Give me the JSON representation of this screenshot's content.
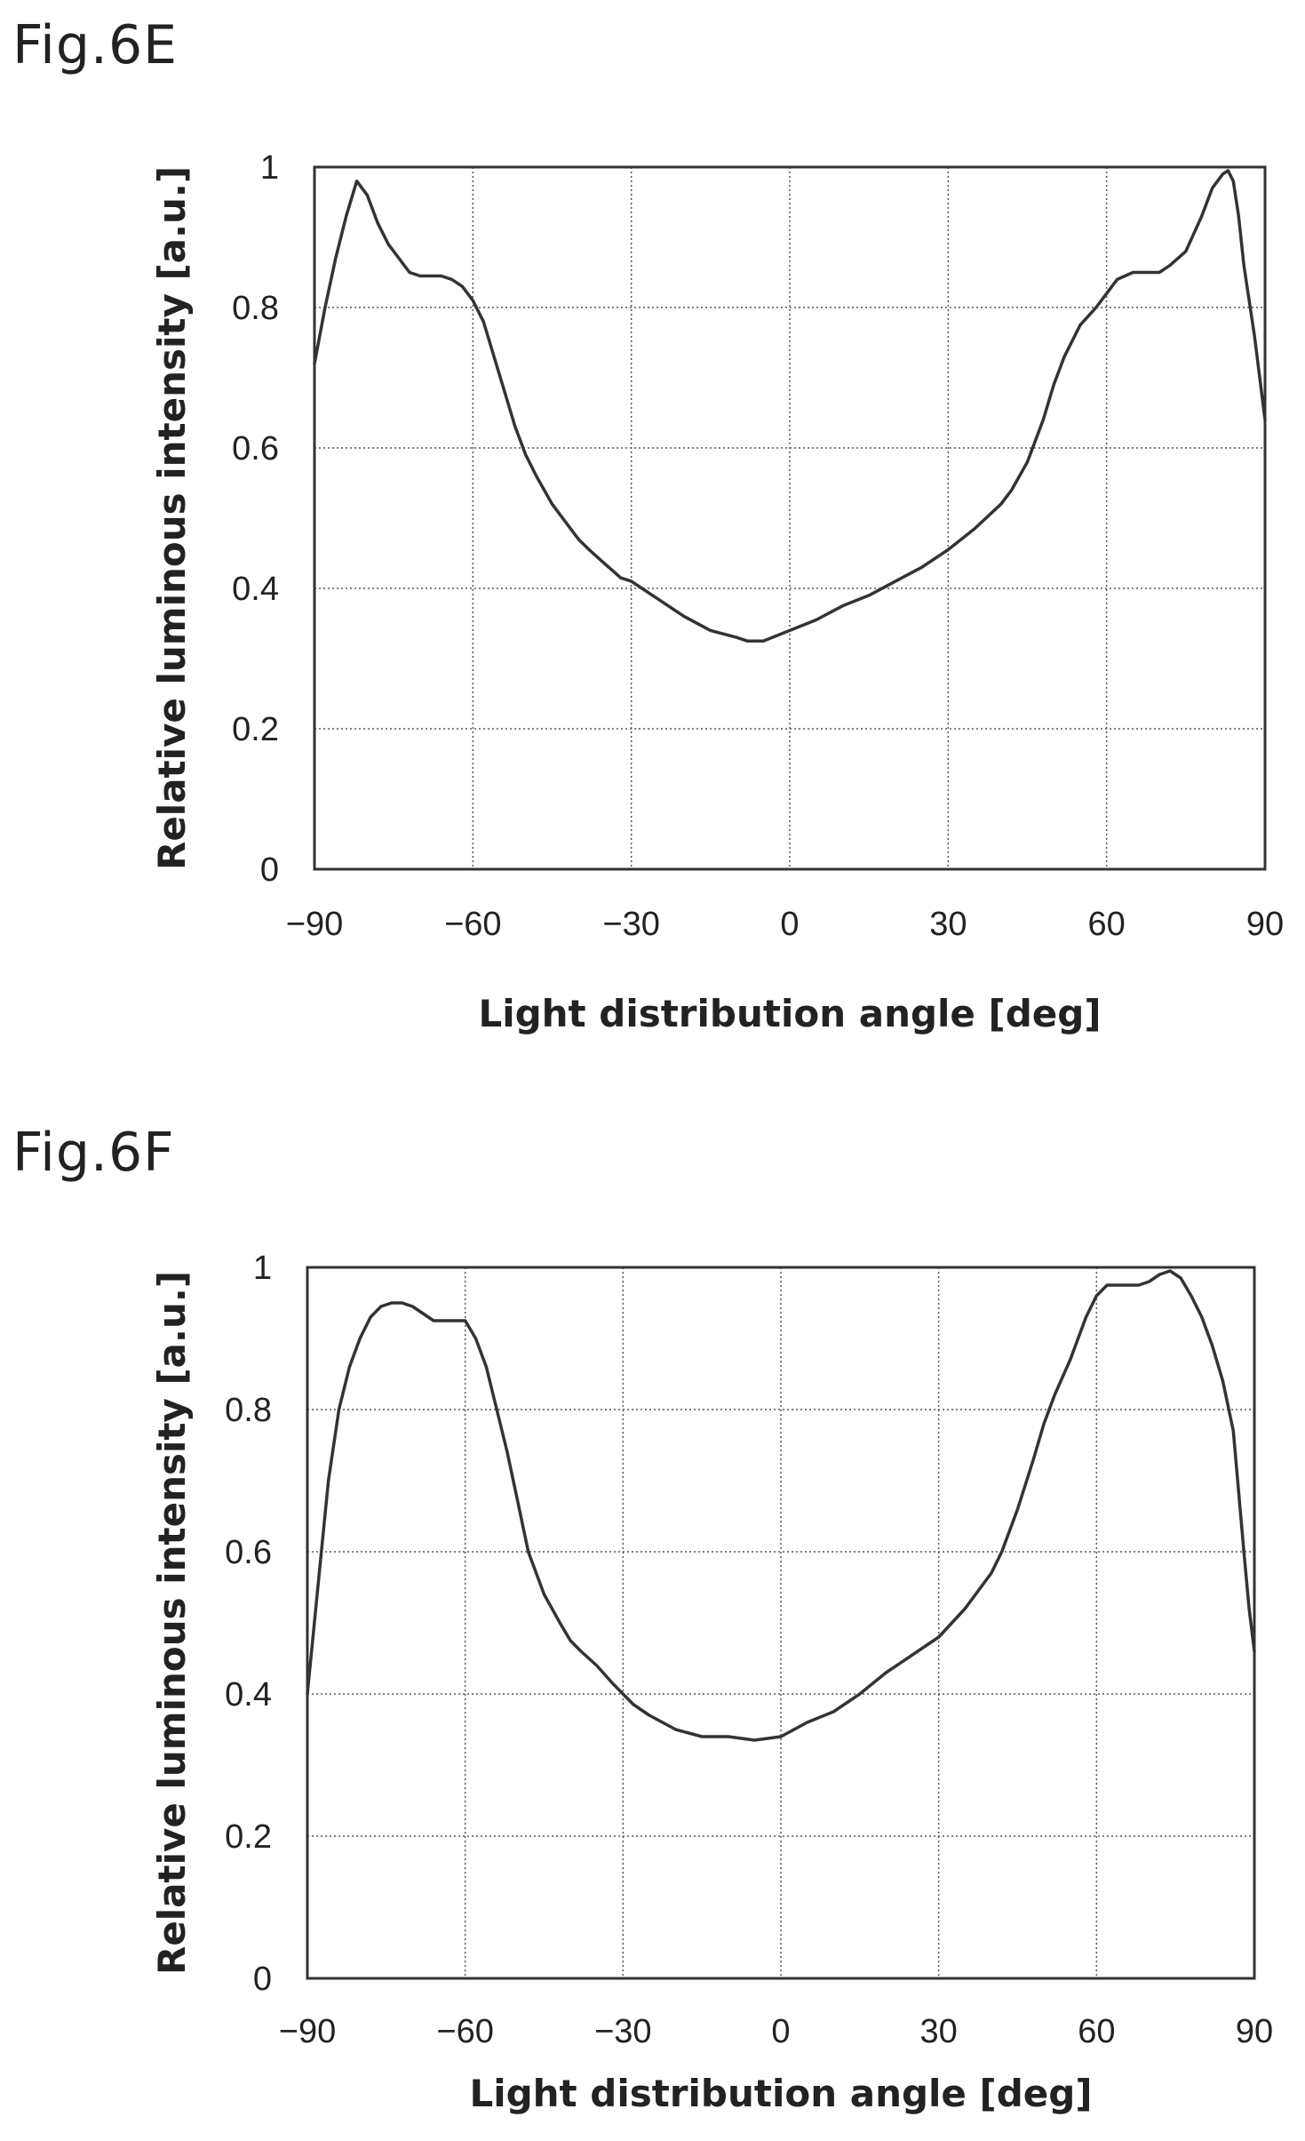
{
  "figures": [
    {
      "label": "Fig.6E"
    },
    {
      "label": "Fig.6F"
    }
  ],
  "chart_data": [
    {
      "type": "line",
      "title": "",
      "xlabel": "Light distribution angle [deg]",
      "ylabel": "Relative luminous intensity [a.u.]",
      "xlim": [
        -90,
        90
      ],
      "ylim": [
        0,
        1
      ],
      "xticks": [
        "−90",
        "−60",
        "−30",
        "0",
        "30",
        "60",
        "90"
      ],
      "yticks": [
        "0",
        "0.2",
        "0.4",
        "0.6",
        "0.8",
        "1"
      ],
      "grid": true,
      "series": [
        {
          "x": [
            -90,
            -88,
            -86,
            -84,
            -82,
            -80,
            -78,
            -76,
            -74,
            -72,
            -70,
            -68,
            -66,
            -64,
            -62,
            -60,
            -58,
            -56,
            -54,
            -52,
            -50,
            -48,
            -45,
            -42,
            -40,
            -38,
            -35,
            -32,
            -30,
            -28,
            -25,
            -20,
            -15,
            -10,
            -8,
            -5,
            0,
            5,
            10,
            15,
            20,
            25,
            30,
            35,
            40,
            42,
            45,
            48,
            50,
            52,
            55,
            58,
            60,
            62,
            65,
            68,
            70,
            72,
            75,
            78,
            80,
            82,
            83,
            84,
            85,
            86,
            88,
            90
          ],
          "y": [
            0.72,
            0.8,
            0.87,
            0.93,
            0.98,
            0.96,
            0.92,
            0.89,
            0.87,
            0.85,
            0.845,
            0.845,
            0.845,
            0.84,
            0.83,
            0.81,
            0.78,
            0.73,
            0.68,
            0.63,
            0.59,
            0.56,
            0.52,
            0.49,
            0.47,
            0.455,
            0.435,
            0.415,
            0.41,
            0.4,
            0.385,
            0.36,
            0.34,
            0.33,
            0.325,
            0.325,
            0.34,
            0.355,
            0.375,
            0.39,
            0.41,
            0.43,
            0.455,
            0.485,
            0.52,
            0.54,
            0.58,
            0.64,
            0.69,
            0.73,
            0.775,
            0.8,
            0.82,
            0.84,
            0.85,
            0.85,
            0.85,
            0.86,
            0.88,
            0.93,
            0.97,
            0.99,
            0.995,
            0.98,
            0.93,
            0.86,
            0.76,
            0.64
          ]
        }
      ]
    },
    {
      "type": "line",
      "title": "",
      "xlabel": "Light distribution angle [deg]",
      "ylabel": "Relative luminous intensity [a.u.]",
      "xlim": [
        -90,
        90
      ],
      "ylim": [
        0,
        1
      ],
      "xticks": [
        "−90",
        "−60",
        "−30",
        "0",
        "30",
        "60",
        "90"
      ],
      "yticks": [
        "0",
        "0.2",
        "0.4",
        "0.6",
        "0.8",
        "1"
      ],
      "grid": true,
      "series": [
        {
          "x": [
            -90,
            -88,
            -86,
            -84,
            -82,
            -80,
            -78,
            -76,
            -74,
            -72,
            -70,
            -68,
            -66,
            -64,
            -62,
            -60,
            -58,
            -56,
            -54,
            -52,
            -50,
            -48,
            -45,
            -42,
            -40,
            -38,
            -35,
            -32,
            -30,
            -28,
            -25,
            -20,
            -15,
            -10,
            -5,
            0,
            5,
            10,
            15,
            20,
            25,
            30,
            35,
            40,
            42,
            45,
            48,
            50,
            52,
            55,
            58,
            60,
            62,
            65,
            68,
            70,
            72,
            74,
            76,
            78,
            80,
            82,
            84,
            86,
            88,
            89,
            90
          ],
          "y": [
            0.4,
            0.55,
            0.7,
            0.8,
            0.86,
            0.9,
            0.93,
            0.945,
            0.95,
            0.95,
            0.945,
            0.935,
            0.925,
            0.925,
            0.925,
            0.925,
            0.9,
            0.86,
            0.8,
            0.74,
            0.67,
            0.6,
            0.54,
            0.5,
            0.475,
            0.46,
            0.44,
            0.415,
            0.4,
            0.385,
            0.37,
            0.35,
            0.34,
            0.34,
            0.335,
            0.34,
            0.36,
            0.375,
            0.4,
            0.43,
            0.455,
            0.48,
            0.52,
            0.57,
            0.6,
            0.66,
            0.73,
            0.78,
            0.82,
            0.87,
            0.93,
            0.96,
            0.975,
            0.975,
            0.975,
            0.98,
            0.99,
            0.995,
            0.985,
            0.96,
            0.93,
            0.89,
            0.84,
            0.77,
            0.6,
            0.52,
            0.46
          ]
        }
      ]
    }
  ]
}
